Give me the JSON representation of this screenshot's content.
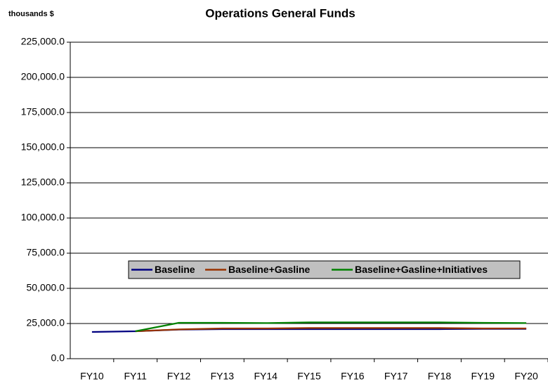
{
  "chart_data": {
    "type": "line",
    "title": "Operations General Funds",
    "y_label": "thousands $",
    "categories": [
      "FY10",
      "FY11",
      "FY12",
      "FY13",
      "FY14",
      "FY15",
      "FY16",
      "FY17",
      "FY18",
      "FY19",
      "FY20"
    ],
    "series": [
      {
        "name": "Baseline",
        "color": "#000080",
        "values": [
          19000,
          19500,
          20700,
          21000,
          21000,
          21000,
          21000,
          21000,
          21000,
          21200,
          21200
        ]
      },
      {
        "name": "Baseline+Gasline",
        "color": "#993300",
        "values": [
          null,
          19500,
          20800,
          21500,
          21500,
          21800,
          21800,
          21800,
          21800,
          21500,
          21500
        ]
      },
      {
        "name": "Baseline+Gasline+Initiatives",
        "color": "#008000",
        "values": [
          null,
          19500,
          25500,
          25500,
          25300,
          25800,
          25800,
          25800,
          25800,
          25500,
          25300
        ]
      }
    ],
    "ylim": [
      0,
      225000
    ],
    "yticks": [
      {
        "value": 0,
        "label": "0.0"
      },
      {
        "value": 25000,
        "label": "25,000.0"
      },
      {
        "value": 50000,
        "label": "50,000.0"
      },
      {
        "value": 75000,
        "label": "75,000.0"
      },
      {
        "value": 100000,
        "label": "100,000.0"
      },
      {
        "value": 125000,
        "label": "125,000.0"
      },
      {
        "value": 150000,
        "label": "150,000.0"
      },
      {
        "value": 175000,
        "label": "175,000.0"
      },
      {
        "value": 200000,
        "label": "200,000.0"
      },
      {
        "value": 225000,
        "label": "225,000.0"
      }
    ],
    "grid": true
  }
}
